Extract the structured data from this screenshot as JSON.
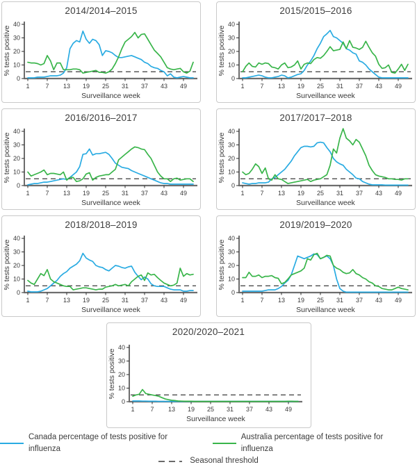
{
  "figure": {
    "xlabel": "Surveillance week",
    "ylabel": "% tests positive",
    "x_ticks": [
      1,
      7,
      13,
      19,
      25,
      31,
      37,
      43,
      49
    ],
    "y_ticks": [
      0,
      10,
      20,
      30,
      40
    ],
    "xlim": [
      1,
      52
    ],
    "ylim": [
      0,
      40
    ],
    "grid": false,
    "colors": {
      "canada": "#29abe2",
      "australia": "#39b54a",
      "threshold": "#3a3a3a"
    }
  },
  "legend": {
    "canada_label": "Canada percentage of tests positive for influenza",
    "australia_label": "Australia percentage of tests positive for influenza",
    "threshold_label": "Seasonal threshold"
  },
  "chart_data": [
    {
      "type": "line",
      "title": "2014/2014–2015",
      "xlabel": "Surveillance week",
      "ylabel": "% tests positive",
      "threshold": 5,
      "series": [
        {
          "name": "Canada",
          "color": "#29abe2",
          "values": [
            0.5,
            0.5,
            0.5,
            1,
            1,
            1,
            1.5,
            2,
            2,
            2,
            2.5,
            4,
            8,
            22,
            26,
            28,
            27,
            35,
            29,
            26,
            29,
            28,
            25,
            17,
            20.5,
            20,
            19,
            17,
            15.5,
            15.5,
            16,
            16.5,
            17,
            16,
            15,
            14,
            12,
            11,
            9,
            8,
            7.5,
            6,
            5,
            2,
            3.5,
            1,
            0.5,
            1,
            1.5,
            1,
            0.5,
            0.5
          ]
        },
        {
          "name": "Australia",
          "color": "#39b54a",
          "values": [
            12,
            11.5,
            11.5,
            11,
            10,
            11,
            17,
            13,
            6.5,
            11.5,
            11.5,
            6.5,
            6.5,
            6.5,
            7,
            7,
            6.5,
            4,
            4.5,
            5,
            5.5,
            6,
            4.5,
            4.5,
            4,
            5,
            7,
            11,
            16,
            22,
            27,
            29,
            31,
            34,
            30,
            32.5,
            33,
            29,
            25,
            21,
            18.5,
            16,
            12,
            8,
            7,
            6.5,
            7,
            7.5,
            5,
            4,
            5.5,
            12
          ]
        }
      ]
    },
    {
      "type": "line",
      "title": "2015/2015–2016",
      "xlabel": "Surveillance week",
      "ylabel": "% tests positive",
      "threshold": 5,
      "series": [
        {
          "name": "Canada",
          "color": "#29abe2",
          "values": [
            0.5,
            0.5,
            1,
            1.5,
            2,
            2.5,
            2,
            1,
            0.5,
            0.5,
            1,
            1.5,
            2.5,
            2,
            0.5,
            1,
            2,
            3,
            3.5,
            6,
            10,
            13,
            17,
            22,
            26,
            31,
            33,
            35.5,
            31,
            30,
            28,
            26,
            22,
            21,
            19,
            18,
            13,
            12,
            10,
            7,
            5,
            3,
            1,
            0.5,
            0.5,
            0.5,
            0.5,
            0.5,
            0.5,
            0.5,
            0.5,
            0.5
          ]
        },
        {
          "name": "Australia",
          "color": "#39b54a",
          "values": [
            5,
            9,
            11.5,
            9,
            8.5,
            11.5,
            10.5,
            11.5,
            11,
            8.5,
            8,
            7,
            10,
            11.5,
            8,
            8.5,
            10,
            13,
            7,
            10.5,
            11.5,
            11,
            14,
            15.5,
            15,
            17,
            20,
            23.5,
            20.5,
            21,
            21.5,
            27,
            22,
            28,
            23,
            22.5,
            21.5,
            23,
            27.5,
            23,
            19,
            16.5,
            10.5,
            7.5,
            8,
            10,
            4.5,
            4,
            7,
            10.5,
            6,
            10.5
          ]
        }
      ]
    },
    {
      "type": "line",
      "title": "2016/2016–2017",
      "xlabel": "Surveillance week",
      "ylabel": "% tests positive",
      "threshold": 5,
      "series": [
        {
          "name": "Canada",
          "color": "#29abe2",
          "values": [
            0.5,
            1,
            1.5,
            1.5,
            2,
            2.5,
            2.5,
            3,
            3.5,
            4,
            4.5,
            5,
            4.5,
            6,
            8,
            10,
            14,
            23,
            23.5,
            27,
            22.5,
            23.5,
            23.5,
            24,
            24.5,
            23,
            20,
            16.5,
            15,
            13.5,
            13,
            12.5,
            11,
            10,
            9,
            8,
            7,
            6,
            5,
            4,
            3,
            2,
            1.5,
            1.5,
            1,
            1,
            1,
            1,
            1,
            1,
            1,
            1
          ]
        },
        {
          "name": "Australia",
          "color": "#39b54a",
          "values": [
            10,
            7,
            8,
            9,
            10,
            11.5,
            8,
            9,
            9,
            8.5,
            8,
            10,
            4,
            6,
            6,
            3,
            3.5,
            5,
            8.5,
            9.5,
            4,
            6,
            7,
            7.5,
            8,
            8,
            10,
            12,
            19,
            21,
            23,
            25,
            27,
            28.5,
            28,
            27,
            26.5,
            23,
            20,
            15,
            10,
            7,
            5,
            5,
            3,
            5,
            5.5,
            4,
            4.5,
            5,
            5,
            3
          ]
        }
      ]
    },
    {
      "type": "line",
      "title": "2017/2017–2018",
      "xlabel": "Surveillance week",
      "ylabel": "% tests positive",
      "threshold": 5,
      "series": [
        {
          "name": "Canada",
          "color": "#29abe2",
          "values": [
            2,
            1.5,
            1,
            1.5,
            1.5,
            2,
            2,
            2,
            2.5,
            5,
            6,
            8,
            10,
            12,
            15,
            18,
            22,
            25,
            28,
            29,
            29,
            28.5,
            29,
            31.5,
            32,
            31.5,
            28,
            25,
            20,
            17.5,
            16,
            15,
            12,
            10,
            8,
            5.5,
            5,
            3,
            2,
            1,
            0.5,
            0.5,
            0.5,
            0.5,
            0.3,
            0.3,
            0.3,
            0.3,
            0.3,
            0.3,
            0.3,
            0.3
          ]
        },
        {
          "name": "Australia",
          "color": "#39b54a",
          "values": [
            10,
            8,
            9,
            12,
            16,
            14,
            9,
            13,
            5,
            4,
            8,
            5,
            4.5,
            3,
            1.5,
            2,
            2.5,
            3,
            3.5,
            4,
            4.5,
            3,
            4,
            4.5,
            5,
            6.5,
            8,
            15,
            27,
            24,
            35,
            42,
            35,
            33,
            30,
            34,
            32,
            27,
            22,
            15,
            11,
            8,
            7,
            6.5,
            6,
            5,
            5,
            4.5,
            4.5,
            4,
            5,
            5
          ]
        }
      ]
    },
    {
      "type": "line",
      "title": "2018/2018–2019",
      "xlabel": "Surveillance week",
      "ylabel": "% tests positive",
      "threshold": 5,
      "series": [
        {
          "name": "Canada",
          "color": "#29abe2",
          "values": [
            1,
            0.5,
            0.5,
            0.5,
            1,
            2,
            3,
            5,
            7,
            9,
            12,
            14,
            15.5,
            18,
            19.5,
            21,
            23.5,
            29,
            25.5,
            24,
            23,
            20,
            19,
            18.5,
            17,
            16,
            18,
            20,
            19.5,
            18.5,
            18,
            19,
            19.5,
            15,
            12,
            9.5,
            11.5,
            10,
            6.5,
            5,
            4.5,
            4.5,
            4.5,
            3.5,
            2.5,
            2,
            2,
            2,
            1,
            1,
            1.5,
            1.5
          ]
        },
        {
          "name": "Australia",
          "color": "#39b54a",
          "values": [
            9,
            7,
            6,
            10,
            14,
            12.5,
            17,
            10,
            8,
            7,
            6,
            5,
            4.5,
            4.5,
            2,
            2.5,
            3,
            3.5,
            3.5,
            3,
            2.5,
            2,
            2.5,
            2.5,
            4,
            4.5,
            5,
            6,
            5,
            5.5,
            6,
            5,
            8,
            10,
            12,
            13,
            9,
            14.5,
            13,
            13.5,
            11,
            9,
            7,
            6,
            5,
            5.5,
            7,
            18,
            12,
            14,
            13,
            13.5
          ]
        }
      ]
    },
    {
      "type": "line",
      "title": "2019/2019–2020",
      "xlabel": "Surveillance week",
      "ylabel": "% tests positive",
      "threshold": 5,
      "series": [
        {
          "name": "Canada",
          "color": "#29abe2",
          "values": [
            1,
            1,
            1,
            1,
            1,
            1,
            1,
            1.5,
            2,
            2,
            2,
            3,
            4.5,
            7,
            9,
            13,
            20,
            27,
            26,
            25,
            26,
            27,
            28.5,
            28,
            25,
            26,
            27,
            25,
            20,
            10,
            3,
            1,
            0.3,
            0.3,
            0.3,
            0.3,
            0.3,
            0.3,
            0.3,
            0.3,
            0.3,
            0.3,
            0.3,
            0.3,
            0.3,
            0.3,
            0.3,
            0.3,
            0.3,
            0.3,
            0.3,
            0.3
          ]
        },
        {
          "name": "Australia",
          "color": "#39b54a",
          "values": [
            11,
            11,
            15,
            12,
            12,
            13,
            11,
            12,
            12,
            12.5,
            11,
            10.5,
            6.5,
            7.5,
            10,
            13,
            14,
            15,
            16,
            18,
            25,
            24,
            28,
            29,
            25,
            26,
            27.5,
            27,
            20,
            18,
            17,
            15,
            14,
            14.5,
            17,
            14,
            13,
            11,
            10,
            8,
            7,
            5,
            4.5,
            3,
            2.5,
            2,
            2,
            3,
            4,
            3,
            2.5,
            2
          ]
        }
      ]
    },
    {
      "type": "line",
      "title": "2020/2020–2021",
      "xlabel": "Surveillance week",
      "ylabel": "% tests positive",
      "threshold": 5,
      "series": [
        {
          "name": "Canada",
          "color": "#29abe2",
          "values": [
            0.5,
            0.5,
            0.5,
            0.4,
            0.4,
            0.3,
            0.3,
            0.3,
            0.2,
            0.2,
            0.2,
            0.2,
            0.2,
            0.2,
            0.2,
            0.2,
            0.2,
            0.2,
            0.2,
            0.2,
            0.2,
            0.2,
            0.2,
            0.2,
            0.2,
            0.2,
            0.2,
            0.2,
            0.2,
            0.2,
            0.2,
            0.2,
            0.2,
            0.2,
            0.2,
            0.2,
            0.2,
            0.2,
            0.2,
            0.2,
            0.2,
            0.2,
            0.2,
            0.2,
            0.2,
            0.2,
            0.2,
            0.2,
            0.2,
            0.2,
            0.2,
            0.2
          ]
        },
        {
          "name": "Australia",
          "color": "#39b54a",
          "values": [
            4,
            5,
            5.5,
            9,
            6,
            5.5,
            5,
            4.5,
            4,
            3,
            2,
            1.5,
            1,
            0.8,
            0.5,
            0.4,
            0.3,
            0.3,
            0.3,
            0.2,
            0.2,
            0.2,
            0.2,
            0.2,
            0.2,
            0.2,
            0.2,
            0.2,
            0.2,
            0.2,
            0.2,
            0.2,
            0.2,
            0.2,
            0.2,
            0.2,
            0.2,
            0.2,
            0.2,
            0.2,
            0.2,
            0.2,
            0.2,
            0.2,
            0.2,
            0.2,
            0.2,
            0.2,
            0.3,
            0.3,
            0.2,
            0.2
          ]
        }
      ]
    }
  ]
}
